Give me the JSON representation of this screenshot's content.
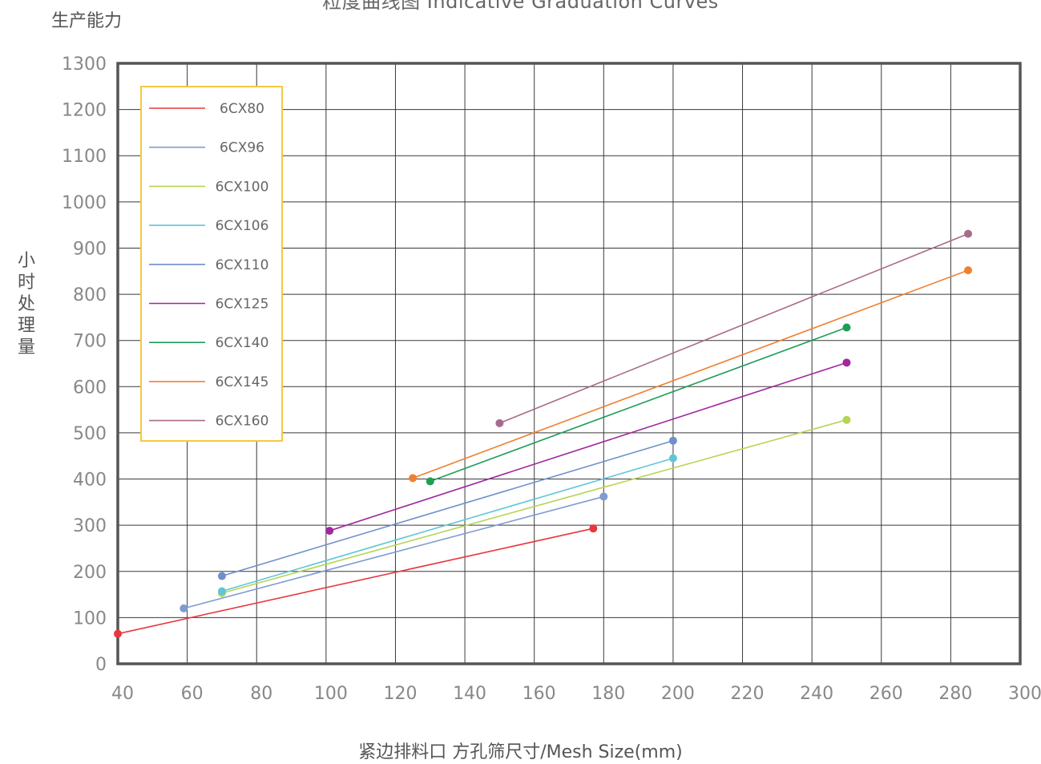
{
  "chart_title": "粒度曲线图 Indicative Graduation Curves",
  "capacity_label": "生产能力",
  "y_axis_label": "小时处理量",
  "x_axis_label": "紧边排料口 方孔筛尺寸/Mesh Size(mm)",
  "chart_data": {
    "type": "line",
    "title": "粒度曲线图 Indicative Graduation Curves",
    "xlabel": "紧边排料口 方孔筛尺寸/Mesh Size(mm)",
    "ylabel": "小时处理量",
    "xlim": [
      40,
      300
    ],
    "ylim": [
      0,
      1300
    ],
    "x_ticks": [
      40,
      60,
      80,
      100,
      120,
      140,
      160,
      180,
      200,
      220,
      240,
      260,
      280,
      300
    ],
    "y_ticks": [
      0,
      100,
      200,
      300,
      400,
      500,
      600,
      700,
      800,
      900,
      1000,
      1100,
      1200,
      1300
    ],
    "grid": true,
    "legend_position": "top-left",
    "series": [
      {
        "name": "6CX80",
        "color": "#e8383d",
        "points": [
          [
            40,
            65
          ],
          [
            177,
            293
          ]
        ]
      },
      {
        "name": "6CX96",
        "color": "#7f9bd0",
        "points": [
          [
            59,
            120
          ],
          [
            180,
            362
          ]
        ]
      },
      {
        "name": "6CX100",
        "color": "#b5d553",
        "points": [
          [
            70,
            153
          ],
          [
            250,
            528
          ]
        ]
      },
      {
        "name": "6CX106",
        "color": "#5fc6d8",
        "points": [
          [
            70,
            157
          ],
          [
            200,
            445
          ]
        ]
      },
      {
        "name": "6CX110",
        "color": "#6f8fcc",
        "points": [
          [
            70,
            190
          ],
          [
            200,
            483
          ]
        ]
      },
      {
        "name": "6CX125",
        "color": "#a1289f",
        "points": [
          [
            101,
            288
          ],
          [
            250,
            652
          ]
        ]
      },
      {
        "name": "6CX140",
        "color": "#1f9e58",
        "points": [
          [
            130,
            395
          ],
          [
            250,
            728
          ]
        ]
      },
      {
        "name": "6CX145",
        "color": "#f08030",
        "points": [
          [
            125,
            402
          ],
          [
            285,
            852
          ]
        ]
      },
      {
        "name": "6CX160",
        "color": "#a86b8c",
        "points": [
          [
            150,
            521
          ],
          [
            285,
            931
          ]
        ]
      }
    ]
  }
}
